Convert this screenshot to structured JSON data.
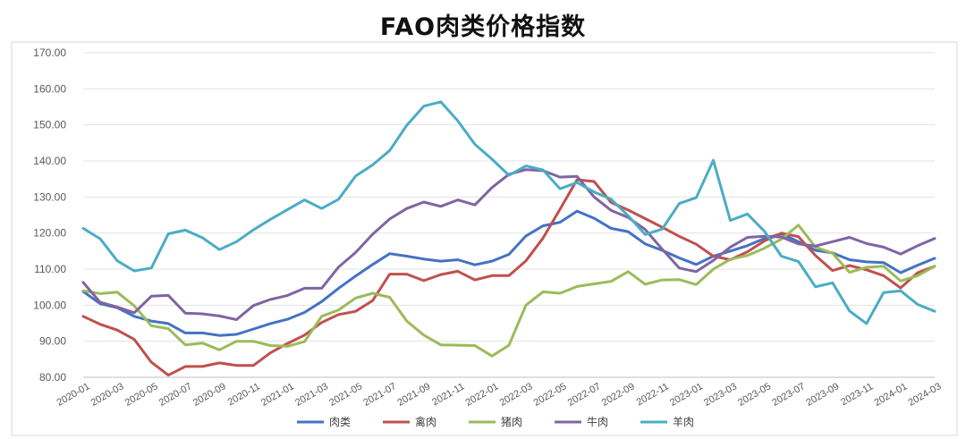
{
  "chart_data": {
    "type": "line",
    "title": "FAO肉类价格指数",
    "xlabel": "",
    "ylabel": "",
    "ylim": [
      80,
      170
    ],
    "yticks": [
      "80.00",
      "90.00",
      "100.00",
      "110.00",
      "120.00",
      "130.00",
      "140.00",
      "150.00",
      "160.00",
      "170.00"
    ],
    "grid": true,
    "legend_position": "bottom",
    "x": [
      "2020-01",
      "2020-02",
      "2020-03",
      "2020-04",
      "2020-05",
      "2020-06",
      "2020-07",
      "2020-08",
      "2020-09",
      "2020-10",
      "2020-11",
      "2020-12",
      "2021-01",
      "2021-02",
      "2021-03",
      "2021-04",
      "2021-05",
      "2021-06",
      "2021-07",
      "2021-08",
      "2021-09",
      "2021-10",
      "2021-11",
      "2021-12",
      "2022-01",
      "2022-02",
      "2022-03",
      "2022-04",
      "2022-05",
      "2022-06",
      "2022-07",
      "2022-08",
      "2022-09",
      "2022-10",
      "2022-11",
      "2022-12",
      "2023-01",
      "2023-02",
      "2023-03",
      "2023-04",
      "2023-05",
      "2023-06",
      "2023-07",
      "2023-08",
      "2023-09",
      "2023-10",
      "2023-11",
      "2023-12",
      "2024-01",
      "2024-02",
      "2024-03"
    ],
    "xtick_labels": [
      "2020-01",
      "2020-03",
      "2020-05",
      "2020-07",
      "2020-09",
      "2020-11",
      "2021-01",
      "2021-03",
      "2021-05",
      "2021-07",
      "2021-09",
      "2021-11",
      "2022-01",
      "2022-03",
      "2022-05",
      "2022-07",
      "2022-09",
      "2022-11",
      "2023-01",
      "2023-03",
      "2023-05",
      "2023-07",
      "2023-09",
      "2023-11",
      "2024-01",
      "2024-03"
    ],
    "series": [
      {
        "name": "肉类",
        "color": "#4472c4",
        "values": [
          103.8,
          100.4,
          99.3,
          96.9,
          95.6,
          94.9,
          92.3,
          92.3,
          91.6,
          91.9,
          93.4,
          94.9,
          96.1,
          98.0,
          101.0,
          104.7,
          108.1,
          111.3,
          114.3,
          113.6,
          112.8,
          112.2,
          112.6,
          111.2,
          112.2,
          114.1,
          119.2,
          122.0,
          123.0,
          126.1,
          124.1,
          121.3,
          120.4,
          117.0,
          115.2,
          113.1,
          111.3,
          113.6,
          115.0,
          116.5,
          118.5,
          119.8,
          117.6,
          115.2,
          114.5,
          112.6,
          112.0,
          111.8,
          109.0,
          111.1,
          113.0
        ]
      },
      {
        "name": "禽肉",
        "color": "#c0504d",
        "values": [
          96.9,
          94.7,
          93.1,
          90.5,
          84.2,
          80.6,
          83.0,
          83.0,
          84.0,
          83.3,
          83.3,
          86.8,
          89.4,
          91.7,
          95.2,
          97.4,
          98.3,
          101.3,
          108.6,
          108.6,
          106.8,
          108.5,
          109.4,
          107.0,
          108.2,
          108.2,
          112.3,
          118.6,
          126.6,
          134.8,
          134.3,
          128.5,
          126.4,
          124.0,
          121.6,
          119.1,
          116.9,
          113.6,
          112.6,
          114.8,
          117.8,
          120.0,
          119.0,
          113.8,
          109.6,
          111.0,
          109.8,
          108.2,
          104.8,
          109.0,
          110.8
        ]
      },
      {
        "name": "猪肉",
        "color": "#9bbb59",
        "values": [
          104.0,
          103.2,
          103.6,
          99.8,
          94.3,
          93.5,
          89.0,
          89.5,
          87.6,
          90.0,
          90.0,
          88.8,
          88.6,
          89.9,
          96.9,
          98.7,
          102.0,
          103.3,
          102.2,
          95.6,
          91.7,
          89.0,
          88.9,
          88.8,
          85.9,
          88.9,
          100.0,
          103.7,
          103.3,
          105.2,
          105.9,
          106.6,
          109.3,
          105.8,
          107.0,
          107.1,
          105.7,
          110.0,
          112.7,
          113.8,
          115.8,
          118.3,
          122.2,
          116.1,
          114.4,
          109.1,
          110.5,
          110.8,
          106.7,
          108.2,
          110.8
        ]
      },
      {
        "name": "牛肉",
        "color": "#8064a2",
        "values": [
          106.3,
          100.8,
          99.5,
          97.9,
          102.5,
          102.7,
          97.8,
          97.6,
          97.0,
          96.0,
          99.9,
          101.6,
          102.7,
          104.7,
          104.7,
          110.6,
          114.6,
          119.7,
          123.9,
          126.8,
          128.6,
          127.4,
          129.2,
          127.8,
          132.6,
          136.3,
          137.6,
          137.3,
          135.5,
          135.7,
          130.0,
          126.3,
          124.3,
          121.0,
          115.5,
          110.3,
          109.3,
          112.4,
          116.1,
          118.8,
          119.1,
          118.9,
          117.0,
          116.4,
          117.6,
          118.8,
          117.1,
          116.1,
          114.2,
          116.5,
          118.5
        ]
      },
      {
        "name": "羊肉",
        "color": "#4bacc6",
        "values": [
          121.3,
          118.4,
          112.3,
          109.5,
          110.3,
          119.8,
          120.8,
          118.7,
          115.4,
          117.6,
          120.9,
          123.8,
          126.5,
          129.2,
          126.8,
          129.4,
          135.8,
          138.9,
          142.9,
          149.9,
          155.2,
          156.4,
          151.1,
          144.6,
          140.5,
          136.0,
          138.6,
          137.5,
          132.3,
          134.0,
          131.4,
          129.4,
          124.8,
          119.6,
          121.1,
          128.2,
          129.8,
          140.2,
          123.5,
          125.3,
          120.5,
          113.6,
          112.1,
          105.1,
          106.2,
          98.4,
          94.9,
          103.5,
          104.0,
          100.2,
          98.3
        ]
      }
    ]
  }
}
